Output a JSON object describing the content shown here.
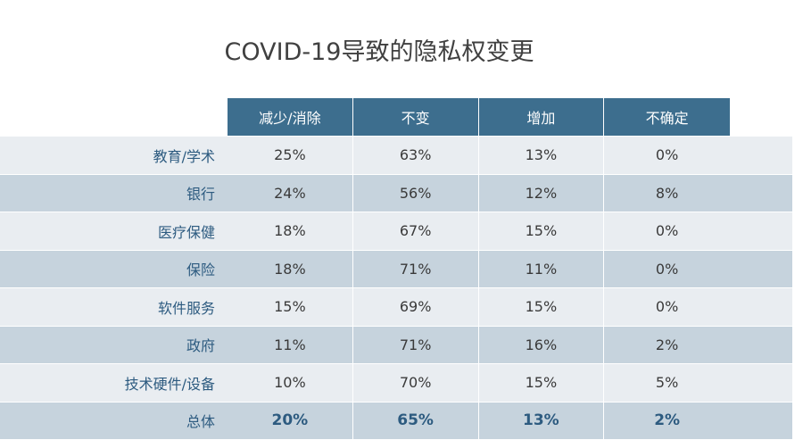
{
  "chart_data": {
    "type": "table",
    "title": "COVID-19导致的隐私权变更",
    "columns": [
      "减少/消除",
      "不变",
      "增加",
      "不确定"
    ],
    "rows": [
      {
        "label": "教育/学术",
        "values": [
          "25%",
          "63%",
          "13%",
          "0%"
        ]
      },
      {
        "label": "银行",
        "values": [
          "24%",
          "56%",
          "12%",
          "8%"
        ]
      },
      {
        "label": "医疗保健",
        "values": [
          "18%",
          "67%",
          "15%",
          "0%"
        ]
      },
      {
        "label": "保险",
        "values": [
          "18%",
          "71%",
          "11%",
          "0%"
        ]
      },
      {
        "label": "软件服务",
        "values": [
          "15%",
          "69%",
          "15%",
          "0%"
        ]
      },
      {
        "label": "政府",
        "values": [
          "11%",
          "71%",
          "16%",
          "2%"
        ]
      },
      {
        "label": "技术硬件/设备",
        "values": [
          "10%",
          "70%",
          "15%",
          "5%"
        ]
      }
    ],
    "total": {
      "label": "总体",
      "values": [
        "20%",
        "65%",
        "13%",
        "2%"
      ]
    }
  },
  "colors": {
    "header_bg": "#3d6e8e",
    "row_light": "#e9edf1",
    "row_dark": "#c6d3dd",
    "label_text": "#2d5b80"
  }
}
